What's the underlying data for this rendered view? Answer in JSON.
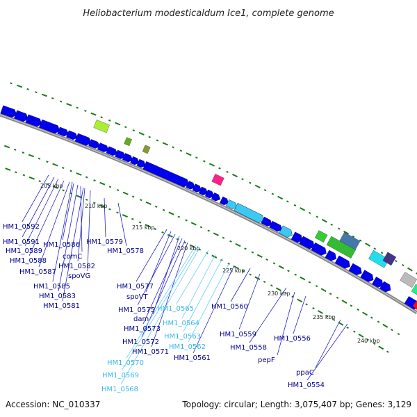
{
  "title": "Heliobacterium modesticaldum Ice1, complete genome",
  "footer": {
    "accession": "Accession: NC_010337",
    "topology": "Topology: circular; Length: 3,075,407 bp; Genes: 3,129"
  },
  "colors": {
    "backbone": "#8a8a8a",
    "gene_blue": "#0000ee",
    "gene_cyan": "#3cc8f0",
    "tick_green": "#1a7a1a",
    "label_blue": "#00008b",
    "label_cyan": "#36b8e8",
    "line_blue": "#2222cc",
    "line_cyan": "#66ccff"
  },
  "kbp_markers": [
    "205 kbp",
    "210 kbp",
    "215 kbp",
    "220 kbp",
    "225 kbp",
    "230 kbp",
    "235 kbp",
    "240 kbp"
  ],
  "gene_labels": [
    {
      "text": "HM1_0592",
      "style": "blue"
    },
    {
      "text": "HM1_0591",
      "style": "blue"
    },
    {
      "text": "HM1_0589",
      "style": "blue"
    },
    {
      "text": "HM1_0588",
      "style": "blue"
    },
    {
      "text": "HM1_0587",
      "style": "blue"
    },
    {
      "text": "HM1_0586",
      "style": "blue"
    },
    {
      "text": "comC",
      "style": "blue"
    },
    {
      "text": "HM1_0582",
      "style": "blue"
    },
    {
      "text": "spoVG",
      "style": "blue"
    },
    {
      "text": "HM1_0585",
      "style": "blue"
    },
    {
      "text": "HM1_0583",
      "style": "blue"
    },
    {
      "text": "HM1_0581",
      "style": "blue"
    },
    {
      "text": "HM1_0579",
      "style": "blue"
    },
    {
      "text": "HM1_0578",
      "style": "blue"
    },
    {
      "text": "HM1_0577",
      "style": "blue"
    },
    {
      "text": "spoVT",
      "style": "blue"
    },
    {
      "text": "HM1_0575",
      "style": "blue"
    },
    {
      "text": "dam",
      "style": "blue"
    },
    {
      "text": "HM1_0573",
      "style": "blue"
    },
    {
      "text": "HM1_0572",
      "style": "blue"
    },
    {
      "text": "HM1_0571",
      "style": "blue"
    },
    {
      "text": "HM1_0570",
      "style": "cyan"
    },
    {
      "text": "HM1_0569",
      "style": "cyan"
    },
    {
      "text": "HM1_0568",
      "style": "cyan"
    },
    {
      "text": "HM1_0565",
      "style": "cyan"
    },
    {
      "text": "HM1_0564",
      "style": "cyan"
    },
    {
      "text": "HM1_0563",
      "style": "cyan"
    },
    {
      "text": "HM1_0562",
      "style": "cyan"
    },
    {
      "text": "HM1_0561",
      "style": "blue"
    },
    {
      "text": "HM1_0560",
      "style": "blue"
    },
    {
      "text": "HM1_0559",
      "style": "blue"
    },
    {
      "text": "HM1_0558",
      "style": "blue"
    },
    {
      "text": "pepF",
      "style": "blue"
    },
    {
      "text": "HM1_0556",
      "style": "blue"
    },
    {
      "text": "ppaC",
      "style": "blue"
    },
    {
      "text": "HM1_0554",
      "style": "blue"
    }
  ]
}
